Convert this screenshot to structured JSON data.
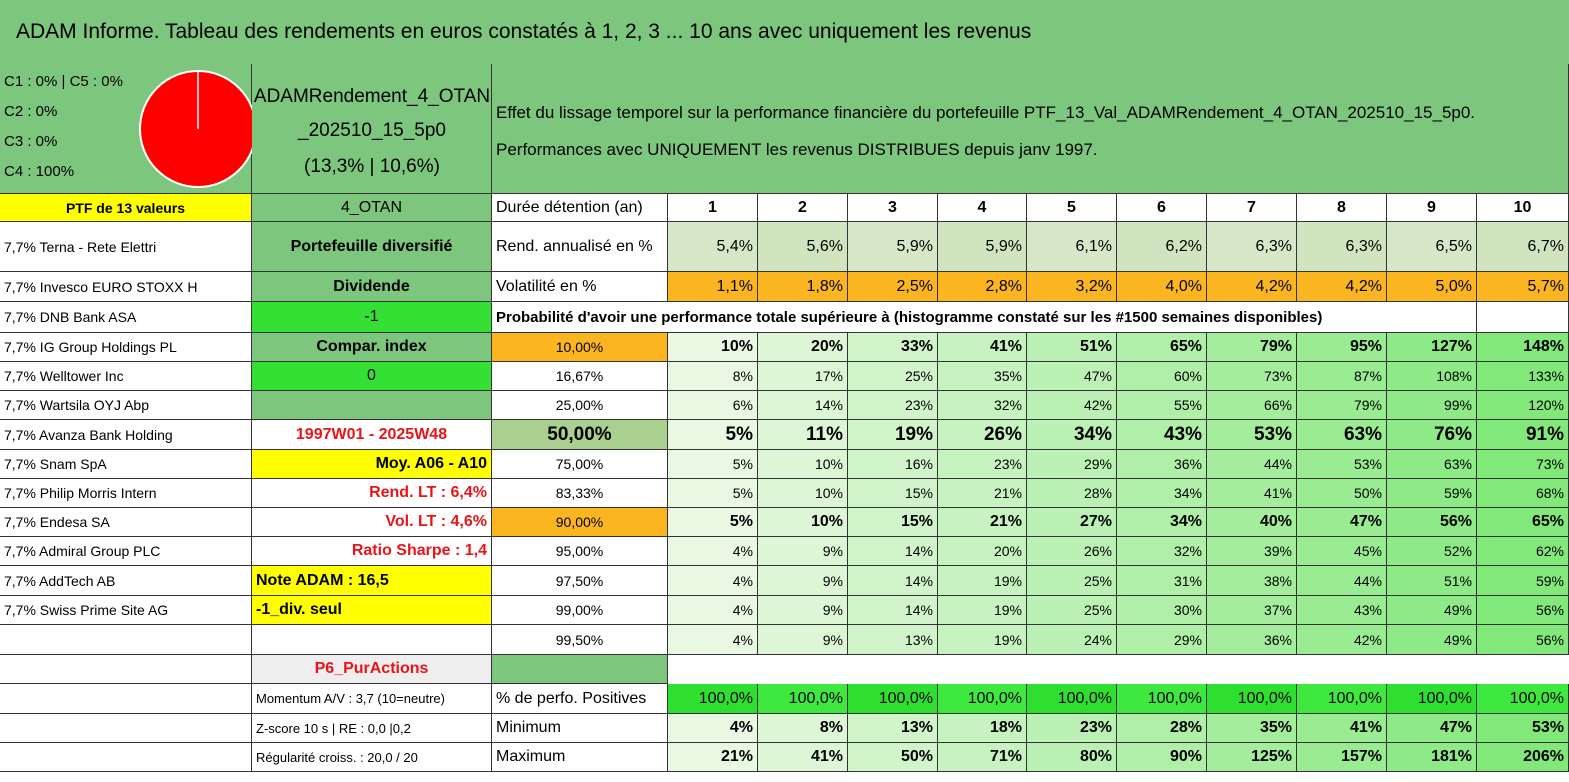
{
  "title": "ADAM Informe. Tableau des rendements en euros constatés à 1, 2, 3 ... 10 ans avec uniquement les revenus",
  "allocation": [
    "C1 : 0% | C5 : 0%",
    "C2 : 0%",
    "C3 : 0%",
    "C4 : 100%"
  ],
  "portfolio": {
    "name": [
      "ADAMRendement_4_OTAN",
      "_202510_15_5p0"
    ],
    "perf": "(13,3% | 10,6%)"
  },
  "description": [
    "Effet du lissage temporel sur la performance financière du portefeuille PTF_13_Val_ADAMRendement_4_OTAN_202510_15_5p0.",
    "Performances avec UNIQUEMENT les revenus DISTRIBUES depuis janv 1997."
  ],
  "holdings_header": "PTF de 13 valeurs",
  "holdings": [
    "7,7% Terna - Rete Elettri",
    "7,7% Invesco EURO STOXX H",
    "7,7% DNB Bank ASA",
    "7,7% IG Group Holdings PL",
    "7,7% Welltower Inc",
    "7,7% Wartsila OYJ Abp",
    "7,7% Avanza Bank Holding",
    "7,7% Snam SpA",
    "7,7% Philip Morris Intern",
    "7,7% Endesa SA",
    "7,7% Admiral Group PLC",
    "7,7% AddTech AB",
    "7,7% Swiss Prime Site AG"
  ],
  "side": {
    "code": "4_OTAN",
    "diversification": "Portefeuille diversifié",
    "dividend_label": "Dividende",
    "dividend_value": "-1",
    "index_label": "Compar. index",
    "index_value": "0",
    "period": "1997W01 - 2025W48",
    "average": "Moy. A06 - A10",
    "long_term_return": "Rend. LT : 6,4%",
    "long_term_vol": "Vol. LT : 4,6%",
    "sharpe": "Ratio Sharpe : 1,4",
    "note": "Note ADAM : 16,5",
    "div_only": "-1_div. seul",
    "profile": "P6_PurActions"
  },
  "stats_left": [
    "Momentum A/V : 3,7 (10=neutre)",
    "Z-score 10 s | RE : 0,0 |0,2",
    "Régularité croiss. : 20,0 / 20"
  ],
  "duration": {
    "label": "Durée détention (an)",
    "years": [
      1,
      2,
      3,
      4,
      5,
      6,
      7,
      8,
      9,
      10
    ]
  },
  "annual_return": {
    "label": "Rend. annualisé en %",
    "values": [
      "5,4%",
      "5,6%",
      "5,9%",
      "5,9%",
      "6,1%",
      "6,2%",
      "6,3%",
      "6,3%",
      "6,5%",
      "6,7%"
    ]
  },
  "volatility": {
    "label": "Volatilité en %",
    "values": [
      "1,1%",
      "1,8%",
      "2,5%",
      "2,8%",
      "3,2%",
      "4,0%",
      "4,2%",
      "4,2%",
      "5,0%",
      "5,7%"
    ]
  },
  "probability": {
    "title": "Probabilité d'avoir une performance totale supérieure à (histogramme constaté sur les #1500 semaines disponibles)",
    "rows": [
      {
        "level": "10,00%",
        "values": [
          "10%",
          "20%",
          "33%",
          "41%",
          "51%",
          "65%",
          "79%",
          "95%",
          "127%",
          "148%"
        ]
      },
      {
        "level": "16,67%",
        "values": [
          "8%",
          "17%",
          "25%",
          "35%",
          "47%",
          "60%",
          "73%",
          "87%",
          "108%",
          "133%"
        ]
      },
      {
        "level": "25,00%",
        "values": [
          "6%",
          "14%",
          "23%",
          "32%",
          "42%",
          "55%",
          "66%",
          "79%",
          "99%",
          "120%"
        ]
      },
      {
        "level": "50,00%",
        "values": [
          "5%",
          "11%",
          "19%",
          "26%",
          "34%",
          "43%",
          "53%",
          "63%",
          "76%",
          "91%"
        ]
      },
      {
        "level": "75,00%",
        "values": [
          "5%",
          "10%",
          "16%",
          "23%",
          "29%",
          "36%",
          "44%",
          "53%",
          "63%",
          "73%"
        ]
      },
      {
        "level": "83,33%",
        "values": [
          "5%",
          "10%",
          "15%",
          "21%",
          "28%",
          "34%",
          "41%",
          "50%",
          "59%",
          "68%"
        ]
      },
      {
        "level": "90,00%",
        "values": [
          "5%",
          "10%",
          "15%",
          "21%",
          "27%",
          "34%",
          "40%",
          "47%",
          "56%",
          "65%"
        ]
      },
      {
        "level": "95,00%",
        "values": [
          "4%",
          "9%",
          "14%",
          "20%",
          "26%",
          "32%",
          "39%",
          "45%",
          "52%",
          "62%"
        ]
      },
      {
        "level": "97,50%",
        "values": [
          "4%",
          "9%",
          "14%",
          "19%",
          "25%",
          "31%",
          "38%",
          "44%",
          "51%",
          "59%"
        ]
      },
      {
        "level": "99,00%",
        "values": [
          "4%",
          "9%",
          "14%",
          "19%",
          "25%",
          "30%",
          "37%",
          "43%",
          "49%",
          "56%"
        ]
      },
      {
        "level": "99,50%",
        "values": [
          "4%",
          "9%",
          "13%",
          "19%",
          "24%",
          "29%",
          "36%",
          "42%",
          "49%",
          "56%"
        ]
      }
    ]
  },
  "positives": {
    "label": "% de perfo. Positives",
    "values": [
      "100,0%",
      "100,0%",
      "100,0%",
      "100,0%",
      "100,0%",
      "100,0%",
      "100,0%",
      "100,0%",
      "100,0%",
      "100,0%"
    ]
  },
  "minimum": {
    "label": "Minimum",
    "values": [
      "4%",
      "8%",
      "13%",
      "18%",
      "23%",
      "28%",
      "35%",
      "41%",
      "47%",
      "53%"
    ]
  },
  "maximum": {
    "label": "Maximum",
    "values": [
      "21%",
      "41%",
      "50%",
      "71%",
      "80%",
      "90%",
      "125%",
      "157%",
      "181%",
      "206%"
    ]
  }
}
